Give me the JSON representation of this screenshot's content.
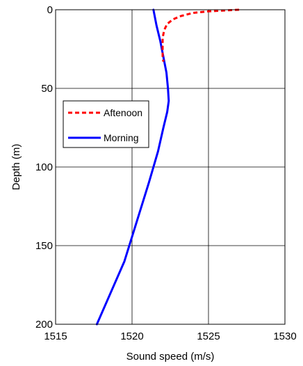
{
  "chart_data": {
    "type": "line",
    "xlabel": "Sound speed (m/s)",
    "ylabel": "Depth (m)",
    "xlim": [
      1515,
      1530
    ],
    "ylim": [
      0,
      200
    ],
    "y_axis_reversed": true,
    "grid": true,
    "x_ticks": [
      1515,
      1520,
      1525,
      1530
    ],
    "y_ticks": [
      0,
      50,
      100,
      150,
      200
    ],
    "legend_position": "center-left",
    "series": [
      {
        "name": "Aftenoon",
        "color": "#ff0000",
        "style": "dashed",
        "points": [
          {
            "x": 1527.0,
            "y": 0
          },
          {
            "x": 1526.0,
            "y": 0.5
          },
          {
            "x": 1525.0,
            "y": 1
          },
          {
            "x": 1524.0,
            "y": 2
          },
          {
            "x": 1523.2,
            "y": 4
          },
          {
            "x": 1522.7,
            "y": 6
          },
          {
            "x": 1522.3,
            "y": 9
          },
          {
            "x": 1522.1,
            "y": 13
          },
          {
            "x": 1522.0,
            "y": 18
          },
          {
            "x": 1522.0,
            "y": 25
          },
          {
            "x": 1522.0,
            "y": 30
          },
          {
            "x": 1522.05,
            "y": 33
          }
        ]
      },
      {
        "name": "Morning",
        "color": "#0000ff",
        "style": "solid",
        "points": [
          {
            "x": 1521.4,
            "y": 0
          },
          {
            "x": 1521.6,
            "y": 10
          },
          {
            "x": 1521.85,
            "y": 20
          },
          {
            "x": 1522.05,
            "y": 30
          },
          {
            "x": 1522.25,
            "y": 40
          },
          {
            "x": 1522.35,
            "y": 50
          },
          {
            "x": 1522.4,
            "y": 58
          },
          {
            "x": 1522.3,
            "y": 65
          },
          {
            "x": 1522.05,
            "y": 75
          },
          {
            "x": 1521.7,
            "y": 90
          },
          {
            "x": 1521.1,
            "y": 110
          },
          {
            "x": 1520.3,
            "y": 135
          },
          {
            "x": 1519.5,
            "y": 160
          },
          {
            "x": 1518.6,
            "y": 180
          },
          {
            "x": 1517.7,
            "y": 200
          }
        ]
      }
    ]
  }
}
